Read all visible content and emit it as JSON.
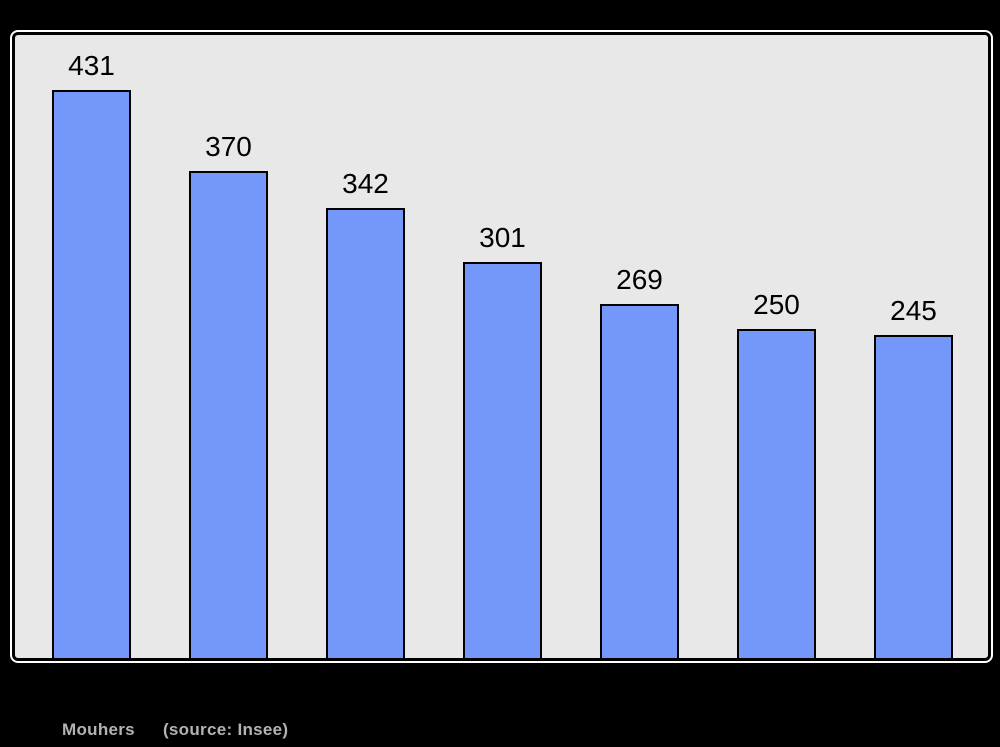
{
  "page": {
    "background_color": "#000000"
  },
  "chart_data": {
    "type": "bar",
    "values": [
      431,
      370,
      342,
      301,
      269,
      250,
      245
    ],
    "data_labels": [
      "431",
      "370",
      "342",
      "301",
      "269",
      "250",
      "245"
    ],
    "title": "",
    "xlabel": "",
    "ylabel": "",
    "ylim": [
      0,
      473
    ],
    "grid": false,
    "legend": false,
    "x_tick_labels_visible": false,
    "y_axis_visible": false,
    "bar_fill_color": "#7398fa",
    "bar_border_color": "#000000",
    "plot_background_color": "#e8e8e8",
    "frame_border_color": "#000000",
    "frame_outline_color": "#ffffff",
    "value_label_color": "#000000"
  },
  "caption": {
    "commune": "Mouhers",
    "source": "(source: Insee)",
    "text_color": "#b3b3b3"
  }
}
